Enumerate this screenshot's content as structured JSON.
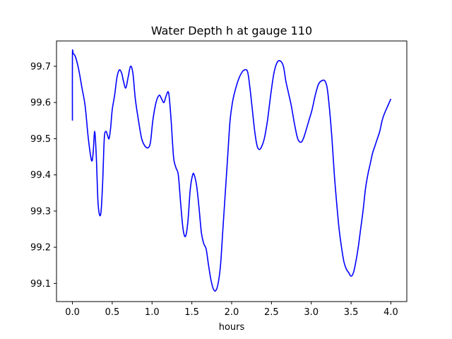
{
  "chart_data": {
    "type": "line",
    "title": "Water Depth h at gauge 110",
    "xlabel": "hours",
    "ylabel": "",
    "xlim": [
      -0.2,
      4.2
    ],
    "ylim": [
      99.05,
      99.77
    ],
    "xticks": [
      0.0,
      0.5,
      1.0,
      1.5,
      2.0,
      2.5,
      3.0,
      3.5,
      4.0
    ],
    "xtick_labels": [
      "0.0",
      "0.5",
      "1.0",
      "1.5",
      "2.0",
      "2.5",
      "3.0",
      "3.5",
      "4.0"
    ],
    "yticks": [
      99.1,
      99.2,
      99.3,
      99.4,
      99.5,
      99.6,
      99.7
    ],
    "ytick_labels": [
      "99.1",
      "99.2",
      "99.3",
      "99.4",
      "99.5",
      "99.6",
      "99.7"
    ],
    "grid": false,
    "series": [
      {
        "color": "#0000ff",
        "x": [
          0.0,
          0.0,
          0.01,
          0.04,
          0.08,
          0.12,
          0.16,
          0.2,
          0.24,
          0.26,
          0.28,
          0.3,
          0.32,
          0.34,
          0.36,
          0.38,
          0.4,
          0.42,
          0.44,
          0.46,
          0.48,
          0.5,
          0.53,
          0.56,
          0.59,
          0.62,
          0.64,
          0.67,
          0.7,
          0.73,
          0.76,
          0.79,
          0.83,
          0.87,
          0.91,
          0.95,
          0.98,
          1.01,
          1.05,
          1.09,
          1.12,
          1.15,
          1.18,
          1.21,
          1.24,
          1.27,
          1.3,
          1.33,
          1.36,
          1.39,
          1.42,
          1.45,
          1.48,
          1.51,
          1.53,
          1.56,
          1.59,
          1.62,
          1.65,
          1.68,
          1.71,
          1.74,
          1.77,
          1.8,
          1.83,
          1.86,
          1.89,
          1.92,
          1.95,
          1.98,
          2.01,
          2.04,
          2.08,
          2.12,
          2.16,
          2.2,
          2.23,
          2.26,
          2.29,
          2.32,
          2.35,
          2.38,
          2.41,
          2.45,
          2.49,
          2.53,
          2.57,
          2.61,
          2.65,
          2.68,
          2.71,
          2.75,
          2.79,
          2.83,
          2.87,
          2.9,
          2.93,
          2.97,
          3.01,
          3.05,
          3.09,
          3.13,
          3.17,
          3.2,
          3.23,
          3.26,
          3.29,
          3.32,
          3.35,
          3.38,
          3.41,
          3.44,
          3.47,
          3.5,
          3.53,
          3.56,
          3.59,
          3.62,
          3.65,
          3.68,
          3.71,
          3.74,
          3.77,
          3.8,
          3.83,
          3.86,
          3.89,
          3.92,
          3.95,
          4.0
        ],
        "y": [
          99.55,
          99.73,
          99.735,
          99.725,
          99.69,
          99.64,
          99.59,
          99.5,
          99.44,
          99.46,
          99.52,
          99.45,
          99.33,
          99.29,
          99.3,
          99.38,
          99.5,
          99.52,
          99.51,
          99.5,
          99.53,
          99.58,
          99.62,
          99.67,
          99.69,
          99.68,
          99.66,
          99.64,
          99.67,
          99.7,
          99.68,
          99.61,
          99.55,
          99.5,
          99.48,
          99.475,
          99.49,
          99.55,
          99.6,
          99.62,
          99.61,
          99.6,
          99.62,
          99.625,
          99.55,
          99.45,
          99.42,
          99.4,
          99.32,
          99.25,
          99.23,
          99.27,
          99.36,
          99.4,
          99.4,
          99.37,
          99.31,
          99.24,
          99.21,
          99.195,
          99.15,
          99.11,
          99.085,
          99.08,
          99.1,
          99.15,
          99.25,
          99.35,
          99.45,
          99.55,
          99.6,
          99.63,
          99.66,
          99.68,
          99.69,
          99.685,
          99.64,
          99.58,
          99.52,
          99.48,
          99.47,
          99.48,
          99.5,
          99.55,
          99.62,
          99.68,
          99.71,
          99.715,
          99.7,
          99.66,
          99.63,
          99.59,
          99.54,
          99.5,
          99.49,
          99.5,
          99.52,
          99.55,
          99.58,
          99.62,
          99.65,
          99.66,
          99.66,
          99.64,
          99.58,
          99.5,
          99.4,
          99.32,
          99.25,
          99.2,
          99.16,
          99.14,
          99.13,
          99.12,
          99.13,
          99.16,
          99.2,
          99.25,
          99.3,
          99.36,
          99.4,
          99.43,
          99.46,
          99.48,
          99.5,
          99.52,
          99.55,
          99.57,
          99.585,
          99.61
        ]
      }
    ]
  }
}
